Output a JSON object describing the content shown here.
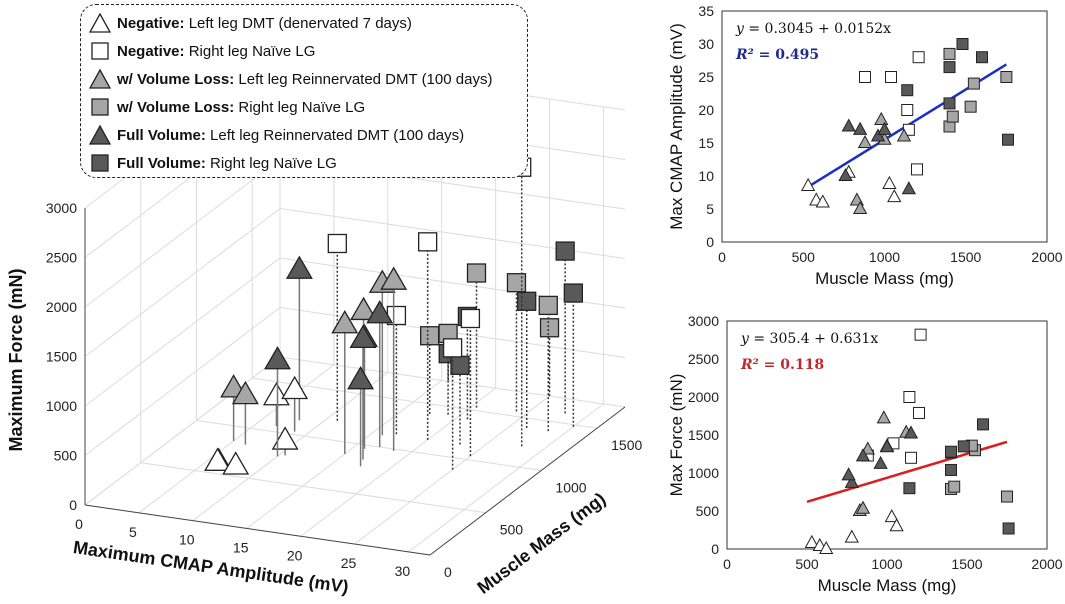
{
  "legend": [
    {
      "marker": "triangle",
      "fill": "#ffffff",
      "bold": "Negative:",
      "text": " Left leg DMT (denervated 7 days)"
    },
    {
      "marker": "square",
      "fill": "#ffffff",
      "bold": "Negative:",
      "text": " Right leg Naïve LG"
    },
    {
      "marker": "triangle",
      "fill": "#a6a6a6",
      "bold": "w/ Volume Loss:",
      "text": " Left leg Reinnervated DMT (100 days)"
    },
    {
      "marker": "square",
      "fill": "#a6a6a6",
      "bold": "w/ Volume Loss:",
      "text": " Right leg Naïve LG"
    },
    {
      "marker": "triangle",
      "fill": "#595959",
      "bold": "Full Volume:",
      "text": " Left leg Reinnervated DMT (100 days)"
    },
    {
      "marker": "square",
      "fill": "#595959",
      "bold": "Full Volume:",
      "text": " Right leg Naïve LG"
    }
  ],
  "colors": {
    "negative": "#ffffff",
    "volume_loss": "#a6a6a6",
    "full_volume": "#595959",
    "blue_fit": "#1a2fc4",
    "red_fit": "#d91f1f",
    "eq_blue": "#1f2a8a",
    "eq_red": "#c0282c"
  },
  "chart_data": [
    {
      "type": "scatter",
      "dims": 3,
      "xlabel": "Maximum CMAP Amplitude (mV)",
      "ylabel": "Muscle Mass (mg)",
      "zlabel": "Maximum Force (mN)",
      "xticks": [
        "0",
        "5",
        "10",
        "15",
        "20",
        "25",
        "30"
      ],
      "yticks": [
        "0",
        "500",
        "1000",
        "1500"
      ],
      "zticks": [
        "0",
        "500",
        "1000",
        "1500",
        "2000",
        "2500",
        "3000"
      ],
      "xlim": [
        0,
        32
      ],
      "ylim": [
        0,
        1750
      ],
      "zlim": [
        0,
        3000
      ],
      "points": [
        {
          "marker": "triangle",
          "group": "negative",
          "cmap": 8.5,
          "mass": 530,
          "force": 80
        },
        {
          "marker": "triangle",
          "group": "negative",
          "cmap": 6.3,
          "mass": 580,
          "force": 40
        },
        {
          "marker": "triangle",
          "group": "negative",
          "cmap": 6,
          "mass": 620,
          "force": 0
        },
        {
          "marker": "triangle",
          "group": "negative",
          "cmap": 10.5,
          "mass": 780,
          "force": 150
        },
        {
          "marker": "triangle",
          "group": "negative",
          "cmap": 8.8,
          "mass": 1030,
          "force": 420
        },
        {
          "marker": "triangle",
          "group": "negative",
          "cmap": 6.8,
          "mass": 1060,
          "force": 300
        },
        {
          "marker": "square",
          "group": "negative",
          "cmap": 28,
          "mass": 1210,
          "force": 2820
        },
        {
          "marker": "square",
          "group": "negative",
          "cmap": 25,
          "mass": 880,
          "force": 1230
        },
        {
          "marker": "square",
          "group": "negative",
          "cmap": 25,
          "mass": 1040,
          "force": 1390
        },
        {
          "marker": "square",
          "group": "negative",
          "cmap": 20,
          "mass": 1140,
          "force": 2000
        },
        {
          "marker": "square",
          "group": "negative",
          "cmap": 17,
          "mass": 1150,
          "force": 1200
        },
        {
          "marker": "square",
          "group": "negative",
          "cmap": 11,
          "mass": 1200,
          "force": 1790
        },
        {
          "marker": "triangle",
          "group": "volume_loss",
          "cmap": 18.5,
          "mass": 980,
          "force": 1720
        },
        {
          "marker": "triangle",
          "group": "volume_loss",
          "cmap": 15.5,
          "mass": 1000,
          "force": 1350
        },
        {
          "marker": "triangle",
          "group": "volume_loss",
          "cmap": 15,
          "mass": 880,
          "force": 1310
        },
        {
          "marker": "triangle",
          "group": "volume_loss",
          "cmap": 16,
          "mass": 1120,
          "force": 1530
        },
        {
          "marker": "triangle",
          "group": "volume_loss",
          "cmap": 6.3,
          "mass": 830,
          "force": 500
        },
        {
          "marker": "triangle",
          "group": "volume_loss",
          "cmap": 5,
          "mass": 850,
          "force": 530
        },
        {
          "marker": "square",
          "group": "volume_loss",
          "cmap": 28.5,
          "mass": 1400,
          "force": 1270
        },
        {
          "marker": "square",
          "group": "volume_loss",
          "cmap": 24,
          "mass": 1550,
          "force": 1300
        },
        {
          "marker": "square",
          "group": "volume_loss",
          "cmap": 20.5,
          "mass": 1530,
          "force": 1360
        },
        {
          "marker": "square",
          "group": "volume_loss",
          "cmap": 17.5,
          "mass": 1400,
          "force": 790
        },
        {
          "marker": "square",
          "group": "volume_loss",
          "cmap": 19,
          "mass": 1420,
          "force": 820
        },
        {
          "marker": "square",
          "group": "volume_loss",
          "cmap": 25,
          "mass": 1750,
          "force": 690
        },
        {
          "marker": "triangle",
          "group": "full_volume",
          "cmap": 17.5,
          "mass": 780,
          "force": 870
        },
        {
          "marker": "triangle",
          "group": "full_volume",
          "cmap": 17,
          "mass": 850,
          "force": 1220
        },
        {
          "marker": "triangle",
          "group": "full_volume",
          "cmap": 10,
          "mass": 760,
          "force": 970
        },
        {
          "marker": "triangle",
          "group": "full_volume",
          "cmap": 16,
          "mass": 960,
          "force": 1120
        },
        {
          "marker": "triangle",
          "group": "full_volume",
          "cmap": 17,
          "mass": 1000,
          "force": 1340
        },
        {
          "marker": "triangle",
          "group": "full_volume",
          "cmap": 8,
          "mass": 1150,
          "force": 1520
        },
        {
          "marker": "square",
          "group": "full_volume",
          "cmap": 30,
          "mass": 1480,
          "force": 1350
        },
        {
          "marker": "square",
          "group": "full_volume",
          "cmap": 28,
          "mass": 1600,
          "force": 1640
        },
        {
          "marker": "square",
          "group": "full_volume",
          "cmap": 26.5,
          "mass": 1400,
          "force": 1280
        },
        {
          "marker": "square",
          "group": "full_volume",
          "cmap": 23,
          "mass": 1140,
          "force": 800
        },
        {
          "marker": "square",
          "group": "full_volume",
          "cmap": 21,
          "mass": 1400,
          "force": 1040
        },
        {
          "marker": "square",
          "group": "full_volume",
          "cmap": 15.5,
          "mass": 1760,
          "force": 270
        }
      ]
    },
    {
      "type": "scatter",
      "xlabel": "Muscle Mass (mg)",
      "ylabel": "Max CMAP Amplitude (mV)",
      "xlim": [
        0,
        2000
      ],
      "ylim": [
        0,
        35
      ],
      "xticks": [
        0,
        500,
        1000,
        1500,
        2000
      ],
      "yticks": [
        0,
        5,
        10,
        15,
        20,
        25,
        30,
        35
      ],
      "fit": {
        "equation_lhs": "y = ",
        "equation_rhs": "0.3045 + 0.0152x",
        "r2_label": "R² = ",
        "r2": "0.495",
        "x_range": [
          500,
          1750
        ],
        "intercept": 0.3045,
        "slope": 0.0152
      }
    },
    {
      "type": "scatter",
      "xlabel": "Muscle Mass (mg)",
      "ylabel": "Max Force (mN)",
      "xlim": [
        0,
        2000
      ],
      "ylim": [
        0,
        3000
      ],
      "xticks": [
        0,
        500,
        1000,
        1500,
        2000
      ],
      "yticks": [
        0,
        500,
        1000,
        1500,
        2000,
        2500,
        3000
      ],
      "fit": {
        "equation_lhs": "y = ",
        "equation_rhs": "305.4 + 0.631x",
        "r2_label": "R² = ",
        "r2": "0.118",
        "x_range": [
          500,
          1750
        ],
        "intercept": 305.4,
        "slope": 0.631
      }
    }
  ]
}
